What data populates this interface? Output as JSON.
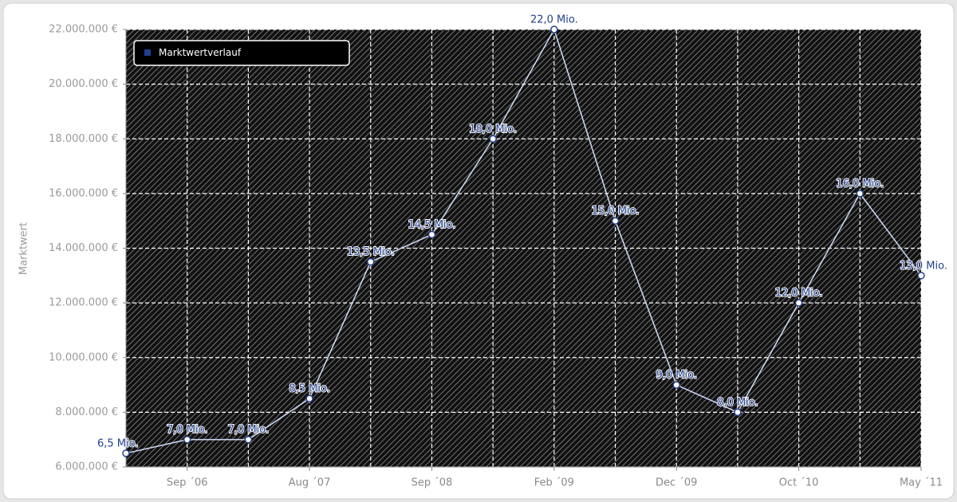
{
  "chart_data": {
    "type": "line",
    "y_label": "Marktwert",
    "categories": [
      null,
      "Sep ´06",
      null,
      "Aug ´07",
      null,
      "Sep ´08",
      null,
      "Feb ´09",
      null,
      "Dec ´09",
      null,
      "Oct ´10",
      null,
      "May ´11"
    ],
    "series": [
      {
        "name": "Marktwertverlauf",
        "color": "#23408e",
        "values": [
          6500000,
          7000000,
          7000000,
          8500000,
          13500000,
          14500000,
          18000000,
          22000000,
          15000000,
          9000000,
          8000000,
          12000000,
          16000000,
          13000000
        ],
        "value_labels": [
          "6,5 Mio.",
          "7,0 Mio.",
          "7,0 Mio.",
          "8,5 Mio.",
          "13,5 Mio.",
          "14,5 Mio.",
          "18,0 Mio.",
          "22,0 Mio.",
          "15,0 Mio.",
          "9,0 Mio.",
          "8,0 Mio.",
          "12,0 Mio.",
          "16,0 Mio.",
          "13,0 Mio."
        ]
      }
    ],
    "ylim": [
      6000000,
      22000000
    ],
    "yticks": [
      {
        "value": 6000000,
        "label": "6.000.000 €"
      },
      {
        "value": 8000000,
        "label": "8.000.000 €"
      },
      {
        "value": 10000000,
        "label": "10.000.000 €"
      },
      {
        "value": 12000000,
        "label": "12.000.000 €"
      },
      {
        "value": 14000000,
        "label": "14.000.000 €"
      },
      {
        "value": 16000000,
        "label": "16.000.000 €"
      },
      {
        "value": 18000000,
        "label": "18.000.000 €"
      },
      {
        "value": 20000000,
        "label": "20.000.000 €"
      },
      {
        "value": 22000000,
        "label": "22.000.000 €"
      }
    ],
    "grid": true,
    "legend": "top-left"
  }
}
